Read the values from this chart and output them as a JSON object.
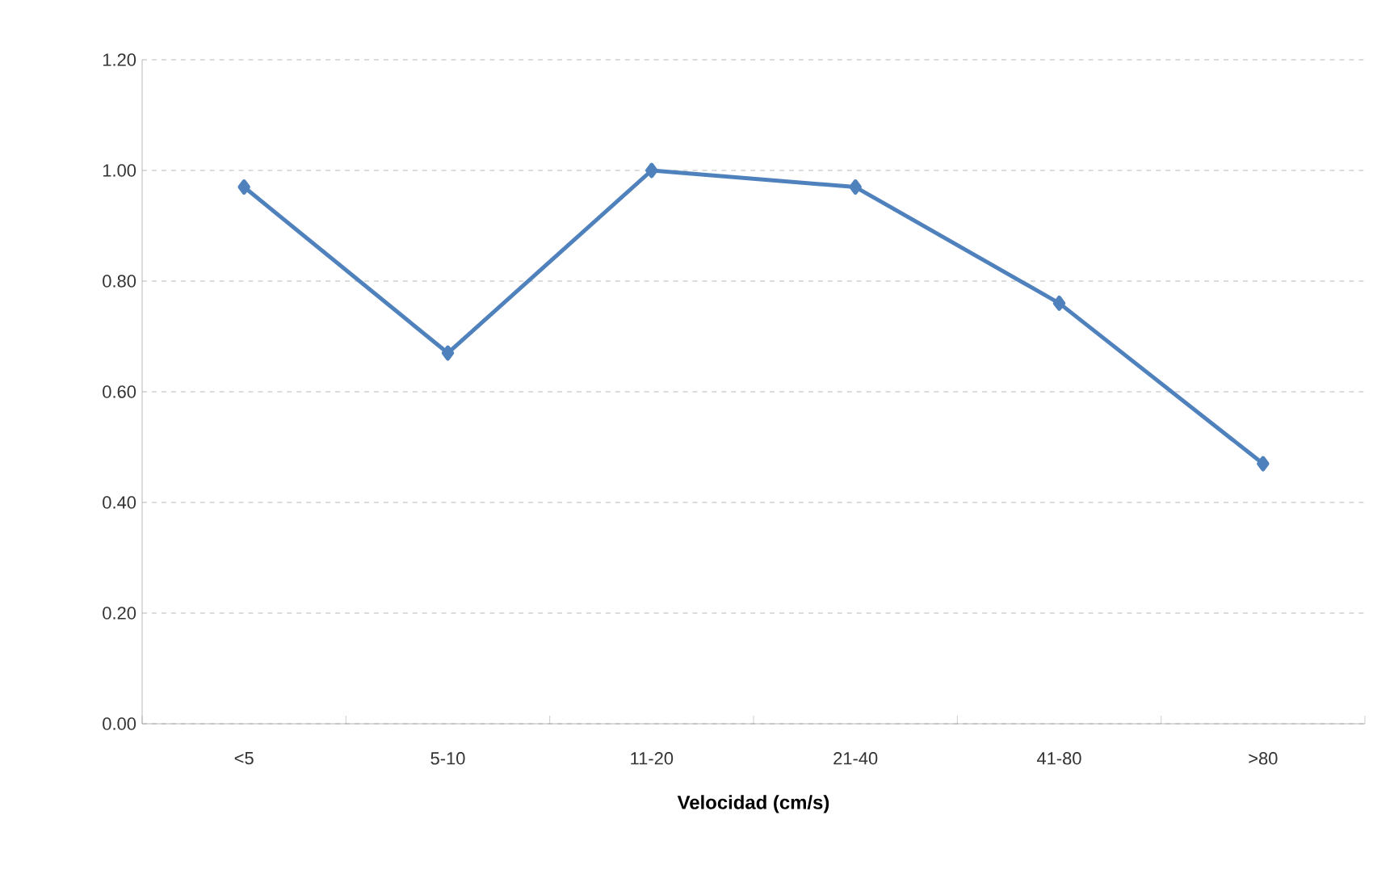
{
  "chart_data": {
    "type": "line",
    "xlabel": "Velocidad (cm/s)",
    "categories": [
      "<5",
      "5-10",
      "11-20",
      "21-40",
      "41-80",
      ">80"
    ],
    "series": [
      {
        "color": "#4f81bd",
        "values": [
          0.97,
          0.67,
          1.0,
          0.97,
          0.76,
          0.47
        ]
      }
    ],
    "ylim": [
      0,
      1.2
    ],
    "yticks": [
      {
        "value": 0,
        "label": "0.00"
      },
      {
        "value": 0.2,
        "label": "0.20"
      },
      {
        "value": 0.4,
        "label": "0.40"
      },
      {
        "value": 0.6,
        "label": "0.60"
      },
      {
        "value": 0.8,
        "label": "0.80"
      },
      {
        "value": 1.0,
        "label": "1.00"
      },
      {
        "value": 1.2,
        "label": "1.20"
      }
    ],
    "grid": "y",
    "marker": "diamond",
    "line_style": "solid"
  }
}
